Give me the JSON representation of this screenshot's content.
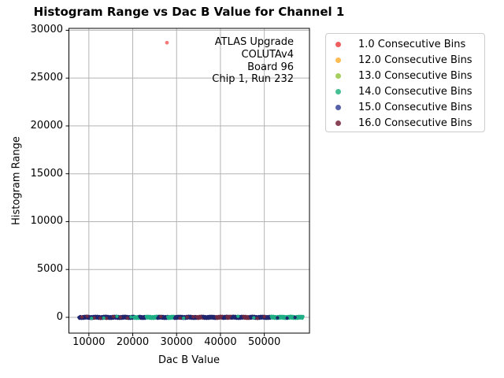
{
  "figure": {
    "background": "#ffffff",
    "spine_color": "#000000"
  },
  "chart_data": {
    "type": "scatter",
    "title": "Histogram Range vs Dac B Value for Channel 1",
    "xlabel": "Dac B Value",
    "ylabel": "Histogram Range",
    "xlim": [
      5450,
      60300
    ],
    "ylim": [
      -1650,
      30200
    ],
    "xticks": [
      10000,
      20000,
      30000,
      40000,
      50000
    ],
    "yticks": [
      0,
      5000,
      10000,
      15000,
      20000,
      25000,
      30000
    ],
    "grid": true,
    "grid_color": "#b4b4b4",
    "legend_position": "upper right",
    "annotation": {
      "lines": [
        "ATLAS Upgrade",
        "COLUTAv4",
        "Board 96",
        "Chip 1, Run 232"
      ]
    },
    "legend": {
      "entries": [
        {
          "key": "1.0",
          "label": "1.0 Consecutive Bins",
          "color": "#ee5e5e"
        },
        {
          "key": "12.0",
          "label": "12.0 Consecutive Bins",
          "color": "#fbbb55"
        },
        {
          "key": "13.0",
          "label": "13.0 Consecutive Bins",
          "color": "#a6cf5f"
        },
        {
          "key": "14.0",
          "label": "14.0 Consecutive Bins",
          "color": "#45bf93"
        },
        {
          "key": "15.0",
          "label": "15.0 Consecutive Bins",
          "color": "#5560a8"
        },
        {
          "key": "16.0",
          "label": "16.0 Consecutive Bins",
          "color": "#8a4458"
        }
      ]
    },
    "series": [
      {
        "key": "1.0",
        "name": "1.0 Consecutive Bins",
        "color": "#ee5e5e",
        "band_color": "#f26d6d",
        "points": [
          [
            27800,
            28700
          ]
        ]
      },
      {
        "key": "12.0",
        "name": "12.0 Consecutive Bins",
        "color": "#fbbb55",
        "band_color": "#fbbb55",
        "points": []
      },
      {
        "key": "13.0",
        "name": "13.0 Consecutive Bins",
        "color": "#a6cf5f",
        "band_color": "#a6cf5f",
        "points": []
      },
      {
        "key": "14.0",
        "name": "14.0 Consecutive Bins",
        "color": "#45bf93",
        "band_color": "#1fae85",
        "points": []
      },
      {
        "key": "15.0",
        "name": "15.0 Consecutive Bins",
        "color": "#5560a8",
        "band_color": "#20276f",
        "points": []
      },
      {
        "key": "16.0",
        "name": "16.0 Consecutive Bins",
        "color": "#8a4458",
        "band_color": "#6e2a44",
        "points": []
      }
    ],
    "band": {
      "y": 0,
      "x_start": 7740,
      "x_end": 58900,
      "step": 150,
      "segments": [
        [
          7740,
          20300,
          "15.0"
        ],
        [
          20300,
          21600,
          "14.0"
        ],
        [
          21600,
          23100,
          "15.0"
        ],
        [
          23100,
          25700,
          "14.0"
        ],
        [
          25700,
          28000,
          "15.0"
        ],
        [
          28000,
          29600,
          "14.0"
        ],
        [
          29600,
          34600,
          "15.0"
        ],
        [
          34600,
          36100,
          "16.0"
        ],
        [
          36100,
          39100,
          "15.0"
        ],
        [
          39100,
          40700,
          "16.0"
        ],
        [
          40700,
          41500,
          "15.0"
        ],
        [
          41500,
          42600,
          "16.0"
        ],
        [
          42600,
          45300,
          "15.0"
        ],
        [
          45300,
          46800,
          "16.0"
        ],
        [
          46800,
          51600,
          "15.0"
        ],
        [
          51600,
          58900,
          "14.0"
        ]
      ],
      "specks": [
        [
          8400,
          "16.0"
        ],
        [
          9600,
          "16.0"
        ],
        [
          11200,
          "16.0"
        ],
        [
          12600,
          "16.0"
        ],
        [
          14000,
          "16.0"
        ],
        [
          15600,
          "16.0"
        ],
        [
          17200,
          "16.0"
        ],
        [
          18800,
          "16.0"
        ],
        [
          26400,
          "16.0"
        ],
        [
          30800,
          "16.0"
        ],
        [
          32400,
          "16.0"
        ],
        [
          33800,
          "16.0"
        ],
        [
          48400,
          "16.0"
        ],
        [
          50000,
          "16.0"
        ],
        [
          10600,
          "14.0"
        ],
        [
          13400,
          "14.0"
        ],
        [
          16400,
          "14.0"
        ],
        [
          19600,
          "14.0"
        ],
        [
          31600,
          "14.0"
        ],
        [
          44000,
          "14.0"
        ],
        [
          47600,
          "14.0"
        ],
        [
          53000,
          "15.0"
        ],
        [
          55200,
          "15.0"
        ],
        [
          57000,
          "15.0"
        ]
      ]
    }
  }
}
